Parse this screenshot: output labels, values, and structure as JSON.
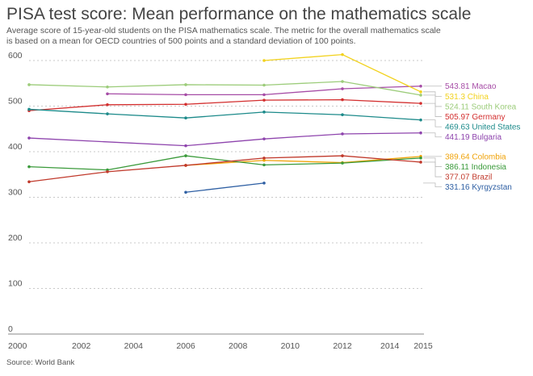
{
  "title": "PISA test score: Mean performance on the mathematics scale",
  "subtitle": "Average score of 15-year-old students on the PISA mathematics scale. The metric for the overall mathematics scale is based on a mean for OECD countries of 500 points and a standard deviation of 100 points.",
  "source": "Source: World Bank",
  "chart_data": {
    "type": "line",
    "title": "PISA test score: Mean performance on the mathematics scale",
    "xlabel": "",
    "ylabel": "",
    "xlim": [
      2000,
      2015
    ],
    "ylim": [
      0,
      620
    ],
    "x_ticks": [
      2000,
      2002,
      2004,
      2006,
      2008,
      2010,
      2012,
      2014,
      2015
    ],
    "y_ticks": [
      0,
      100,
      200,
      300,
      400,
      500,
      600
    ],
    "grid": true,
    "series": [
      {
        "name": "Macao",
        "label": "543.81 Macao",
        "color": "#a64ca6",
        "points": [
          [
            2003,
            527
          ],
          [
            2006,
            525
          ],
          [
            2009,
            525
          ],
          [
            2012,
            538
          ],
          [
            2015,
            543.81
          ]
        ]
      },
      {
        "name": "China",
        "label": "531.3 China",
        "color": "#f2d21e",
        "points": [
          [
            2009,
            600
          ],
          [
            2012,
            613
          ],
          [
            2015,
            531.3
          ]
        ]
      },
      {
        "name": "South Korea",
        "label": "524.11 South Korea",
        "color": "#9ccc7a",
        "points": [
          [
            2000,
            547
          ],
          [
            2003,
            542
          ],
          [
            2006,
            547
          ],
          [
            2009,
            546
          ],
          [
            2012,
            554
          ],
          [
            2015,
            524.11
          ]
        ]
      },
      {
        "name": "Germany",
        "label": "505.97 Germany",
        "color": "#d32f2f",
        "points": [
          [
            2000,
            490
          ],
          [
            2003,
            503
          ],
          [
            2006,
            504
          ],
          [
            2009,
            513
          ],
          [
            2012,
            514
          ],
          [
            2015,
            505.97
          ]
        ]
      },
      {
        "name": "United States",
        "label": "469.63 United States",
        "color": "#1c8a8a",
        "points": [
          [
            2000,
            493
          ],
          [
            2003,
            483
          ],
          [
            2006,
            474
          ],
          [
            2009,
            487
          ],
          [
            2012,
            481
          ],
          [
            2015,
            469.63
          ]
        ]
      },
      {
        "name": "Bulgaria",
        "label": "441.19 Bulgaria",
        "color": "#8e44ad",
        "points": [
          [
            2000,
            430
          ],
          [
            2006,
            413
          ],
          [
            2009,
            428
          ],
          [
            2012,
            439
          ],
          [
            2015,
            441.19
          ]
        ]
      },
      {
        "name": "Colombia",
        "label": "389.64 Colombia",
        "color": "#f0a30a",
        "points": [
          [
            2006,
            370
          ],
          [
            2009,
            381
          ],
          [
            2012,
            376
          ],
          [
            2015,
            389.64
          ]
        ]
      },
      {
        "name": "Indonesia",
        "label": "386.11 Indonesia",
        "color": "#3a9a3a",
        "points": [
          [
            2000,
            367
          ],
          [
            2003,
            360
          ],
          [
            2006,
            391
          ],
          [
            2009,
            371
          ],
          [
            2012,
            375
          ],
          [
            2015,
            386.11
          ]
        ]
      },
      {
        "name": "Brazil",
        "label": "377.07 Brazil",
        "color": "#c0392b",
        "points": [
          [
            2000,
            334
          ],
          [
            2003,
            356
          ],
          [
            2006,
            370
          ],
          [
            2009,
            386
          ],
          [
            2012,
            391
          ],
          [
            2015,
            377.07
          ]
        ]
      },
      {
        "name": "Kyrgyzstan",
        "label": "331.16 Kyrgyzstan",
        "color": "#2e5fa3",
        "points": [
          [
            2006,
            311
          ],
          [
            2009,
            331.16
          ]
        ]
      }
    ]
  }
}
